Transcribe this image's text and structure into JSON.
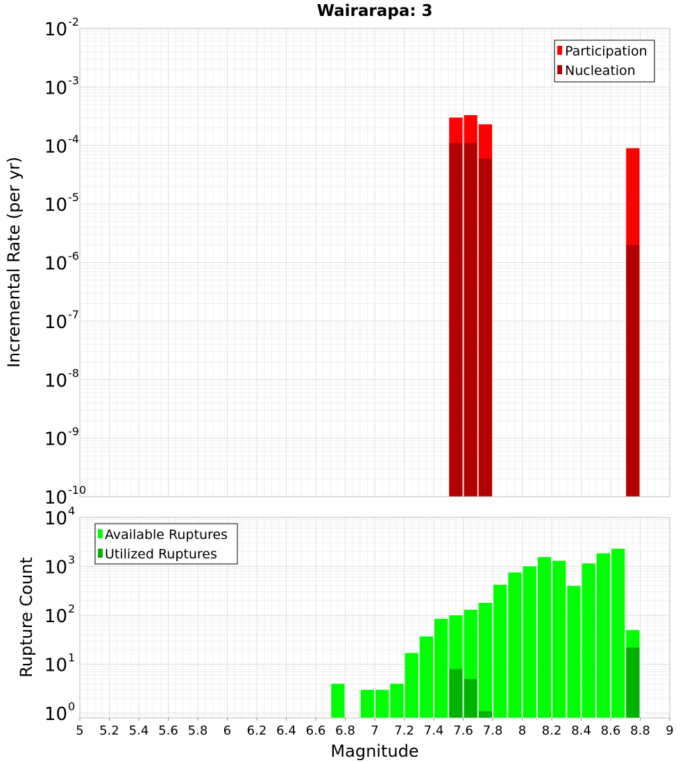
{
  "chart_data": [
    {
      "type": "bar",
      "title": "Wairarapa: 3",
      "ylabel": "Incremental Rate (per yr)",
      "xlabel": "",
      "xlim": [
        5,
        9
      ],
      "ylim": [
        1e-10,
        0.01
      ],
      "yscale": "log",
      "bin_width": 0.1,
      "grid": true,
      "legend_position": "top-right",
      "y_ticks": [
        {
          "base": "10",
          "exp": "-10",
          "value": 1e-10
        },
        {
          "base": "10",
          "exp": "-9",
          "value": 1e-09
        },
        {
          "base": "10",
          "exp": "-8",
          "value": 1e-08
        },
        {
          "base": "10",
          "exp": "-7",
          "value": 1e-07
        },
        {
          "base": "10",
          "exp": "-6",
          "value": 1e-06
        },
        {
          "base": "10",
          "exp": "-5",
          "value": 1e-05
        },
        {
          "base": "10",
          "exp": "-4",
          "value": 0.0001
        },
        {
          "base": "10",
          "exp": "-3",
          "value": 0.001
        },
        {
          "base": "10",
          "exp": "-2",
          "value": 0.01
        }
      ],
      "series": [
        {
          "name": "Participation",
          "color": "#ff0000",
          "x": [
            7.55,
            7.65,
            7.75,
            8.75
          ],
          "values": [
            0.0003,
            0.00033,
            0.00023,
            9e-05
          ]
        },
        {
          "name": "Nucleation",
          "color": "#b30000",
          "x": [
            7.55,
            7.65,
            7.75,
            8.75
          ],
          "values": [
            0.00011,
            0.00011,
            6e-05,
            2e-06
          ]
        }
      ]
    },
    {
      "type": "bar",
      "title": "",
      "ylabel": "Rupture Count",
      "xlabel": "Magnitude",
      "xlim": [
        5,
        9
      ],
      "ylim": [
        0.8,
        10000
      ],
      "yscale": "log",
      "bin_width": 0.1,
      "grid": true,
      "legend_position": "top-left",
      "x_ticks": [
        "5",
        "5.2",
        "5.4",
        "5.6",
        "5.8",
        "6",
        "6.2",
        "6.4",
        "6.6",
        "6.8",
        "7",
        "7.2",
        "7.4",
        "7.6",
        "7.8",
        "8",
        "8.2",
        "8.4",
        "8.6",
        "8.8",
        "9"
      ],
      "y_ticks": [
        {
          "base": "10",
          "exp": "0",
          "value": 1
        },
        {
          "base": "10",
          "exp": "1",
          "value": 10
        },
        {
          "base": "10",
          "exp": "2",
          "value": 100
        },
        {
          "base": "10",
          "exp": "3",
          "value": 1000
        },
        {
          "base": "10",
          "exp": "4",
          "value": 10000
        }
      ],
      "series": [
        {
          "name": "Available Ruptures",
          "color": "#00ff00",
          "x": [
            6.75,
            6.95,
            7.05,
            7.15,
            7.25,
            7.35,
            7.45,
            7.55,
            7.65,
            7.75,
            7.85,
            7.95,
            8.05,
            8.15,
            8.25,
            8.35,
            8.45,
            8.55,
            8.65,
            8.75
          ],
          "values": [
            4,
            3,
            3,
            4,
            17,
            37,
            85,
            100,
            130,
            180,
            420,
            750,
            1000,
            1550,
            1300,
            400,
            1150,
            1850,
            2300,
            50
          ]
        },
        {
          "name": "Utilized Ruptures",
          "color": "#00b300",
          "x": [
            7.55,
            7.65,
            7.75,
            8.75
          ],
          "values": [
            8,
            5,
            1.1,
            22
          ]
        }
      ]
    }
  ]
}
